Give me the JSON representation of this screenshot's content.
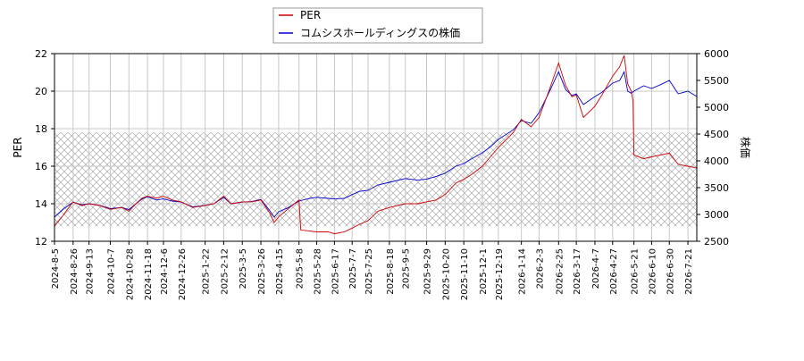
{
  "chart_data": {
    "type": "line",
    "xlabel": "",
    "ylabel_left": "PER",
    "ylabel_right": "株価",
    "ylim_left": [
      12,
      22
    ],
    "ylim_right": [
      2500,
      6000
    ],
    "yticks_left": [
      12,
      14,
      16,
      18,
      20,
      22
    ],
    "yticks_right": [
      2500,
      3000,
      3500,
      4000,
      4500,
      5000,
      5500,
      6000
    ],
    "x_range": [
      "2024-08-05",
      "2026-07-31"
    ],
    "xticks": [
      "2024-8-5",
      "2024-8-26",
      "2024-9-13",
      "2024-10-7",
      "2024-10-28",
      "2024-11-18",
      "2024-12-6",
      "2024-12-26",
      "2025-1-22",
      "2025-2-12",
      "2025-3-5",
      "2025-3-26",
      "2025-4-15",
      "2025-5-8",
      "2025-5-28",
      "2025-6-17",
      "2025-7-7",
      "2025-7-25",
      "2025-8-18",
      "2025-9-5",
      "2025-9-29",
      "2025-10-20",
      "2025-11-10",
      "2025-12-1",
      "2025-12-19",
      "2026-1-14",
      "2026-2-3",
      "2026-2-25",
      "2026-3-17",
      "2026-4-7",
      "2026-4-27",
      "2026-5-21",
      "2026-6-10",
      "2026-6-30",
      "2026-7-21"
    ],
    "legend_position": "top",
    "grid": true,
    "shaded_band_per": [
      12.8,
      17.8
    ],
    "series": [
      {
        "name": "PER",
        "axis": "left",
        "color": "#cc0000",
        "points": [
          [
            "2024-08-05",
            12.8
          ],
          [
            "2024-08-15",
            13.4
          ],
          [
            "2024-08-26",
            14.1
          ],
          [
            "2024-09-05",
            13.9
          ],
          [
            "2024-09-13",
            14.0
          ],
          [
            "2024-09-25",
            13.9
          ],
          [
            "2024-10-07",
            13.7
          ],
          [
            "2024-10-20",
            13.8
          ],
          [
            "2024-10-28",
            13.6
          ],
          [
            "2024-11-05",
            14.0
          ],
          [
            "2024-11-12",
            14.3
          ],
          [
            "2024-11-18",
            14.4
          ],
          [
            "2024-11-28",
            14.3
          ],
          [
            "2024-12-06",
            14.4
          ],
          [
            "2024-12-16",
            14.2
          ],
          [
            "2024-12-26",
            14.1
          ],
          [
            "2025-01-08",
            13.8
          ],
          [
            "2025-01-22",
            13.9
          ],
          [
            "2025-02-01",
            14.0
          ],
          [
            "2025-02-12",
            14.4
          ],
          [
            "2025-02-20",
            14.0
          ],
          [
            "2025-03-05",
            14.1
          ],
          [
            "2025-03-15",
            14.1
          ],
          [
            "2025-03-26",
            14.2
          ],
          [
            "2025-04-05",
            13.5
          ],
          [
            "2025-04-10",
            13.0
          ],
          [
            "2025-04-15",
            13.3
          ],
          [
            "2025-04-25",
            13.7
          ],
          [
            "2025-05-08",
            14.2
          ],
          [
            "2025-05-10",
            12.6
          ],
          [
            "2025-05-28",
            12.5
          ],
          [
            "2025-06-10",
            12.5
          ],
          [
            "2025-06-17",
            12.4
          ],
          [
            "2025-06-28",
            12.5
          ],
          [
            "2025-07-07",
            12.7
          ],
          [
            "2025-07-15",
            12.9
          ],
          [
            "2025-07-25",
            13.1
          ],
          [
            "2025-08-05",
            13.6
          ],
          [
            "2025-08-18",
            13.8
          ],
          [
            "2025-09-05",
            14.0
          ],
          [
            "2025-09-19",
            14.0
          ],
          [
            "2025-09-29",
            14.1
          ],
          [
            "2025-10-10",
            14.2
          ],
          [
            "2025-10-20",
            14.5
          ],
          [
            "2025-11-01",
            15.1
          ],
          [
            "2025-11-10",
            15.3
          ],
          [
            "2025-11-20",
            15.6
          ],
          [
            "2025-12-01",
            16.0
          ],
          [
            "2025-12-10",
            16.5
          ],
          [
            "2025-12-19",
            17.0
          ],
          [
            "2026-01-05",
            17.8
          ],
          [
            "2026-01-14",
            18.5
          ],
          [
            "2026-01-25",
            18.1
          ],
          [
            "2026-02-03",
            18.6
          ],
          [
            "2026-02-14",
            20.0
          ],
          [
            "2026-02-25",
            21.5
          ],
          [
            "2026-03-05",
            20.3
          ],
          [
            "2026-03-12",
            19.7
          ],
          [
            "2026-03-17",
            19.8
          ],
          [
            "2026-03-25",
            18.6
          ],
          [
            "2026-04-07",
            19.2
          ],
          [
            "2026-04-15",
            19.8
          ],
          [
            "2026-04-27",
            20.8
          ],
          [
            "2026-05-05",
            21.3
          ],
          [
            "2026-05-10",
            21.9
          ],
          [
            "2026-05-14",
            20.4
          ],
          [
            "2026-05-18",
            20.0
          ],
          [
            "2026-05-20",
            19.5
          ],
          [
            "2026-05-21",
            16.6
          ],
          [
            "2026-06-01",
            16.4
          ],
          [
            "2026-06-10",
            16.5
          ],
          [
            "2026-06-20",
            16.6
          ],
          [
            "2026-06-30",
            16.7
          ],
          [
            "2026-07-10",
            16.1
          ],
          [
            "2026-07-21",
            16.0
          ],
          [
            "2026-07-31",
            15.9
          ]
        ]
      },
      {
        "name": "コムシスホールディングスの株価",
        "axis": "right",
        "color": "#0000cc",
        "points": [
          [
            "2024-08-05",
            2950
          ],
          [
            "2024-08-15",
            3100
          ],
          [
            "2024-08-26",
            3230
          ],
          [
            "2024-09-05",
            3180
          ],
          [
            "2024-09-13",
            3200
          ],
          [
            "2024-09-25",
            3170
          ],
          [
            "2024-10-07",
            3110
          ],
          [
            "2024-10-20",
            3130
          ],
          [
            "2024-10-28",
            3090
          ],
          [
            "2024-11-05",
            3200
          ],
          [
            "2024-11-12",
            3290
          ],
          [
            "2024-11-18",
            3330
          ],
          [
            "2024-11-28",
            3270
          ],
          [
            "2024-12-06",
            3290
          ],
          [
            "2024-12-16",
            3250
          ],
          [
            "2024-12-26",
            3230
          ],
          [
            "2025-01-08",
            3140
          ],
          [
            "2025-01-22",
            3170
          ],
          [
            "2025-02-01",
            3200
          ],
          [
            "2025-02-12",
            3320
          ],
          [
            "2025-02-20",
            3200
          ],
          [
            "2025-03-05",
            3230
          ],
          [
            "2025-03-15",
            3240
          ],
          [
            "2025-03-26",
            3280
          ],
          [
            "2025-04-05",
            3070
          ],
          [
            "2025-04-10",
            2950
          ],
          [
            "2025-04-15",
            3050
          ],
          [
            "2025-04-25",
            3120
          ],
          [
            "2025-05-08",
            3250
          ],
          [
            "2025-05-20",
            3300
          ],
          [
            "2025-05-28",
            3320
          ],
          [
            "2025-06-10",
            3300
          ],
          [
            "2025-06-17",
            3290
          ],
          [
            "2025-06-28",
            3300
          ],
          [
            "2025-07-07",
            3370
          ],
          [
            "2025-07-15",
            3430
          ],
          [
            "2025-07-25",
            3450
          ],
          [
            "2025-08-05",
            3550
          ],
          [
            "2025-08-18",
            3600
          ],
          [
            "2025-09-05",
            3670
          ],
          [
            "2025-09-19",
            3640
          ],
          [
            "2025-09-29",
            3660
          ],
          [
            "2025-10-10",
            3710
          ],
          [
            "2025-10-20",
            3770
          ],
          [
            "2025-11-01",
            3900
          ],
          [
            "2025-11-10",
            3950
          ],
          [
            "2025-11-20",
            4050
          ],
          [
            "2025-12-01",
            4150
          ],
          [
            "2025-12-10",
            4260
          ],
          [
            "2025-12-19",
            4400
          ],
          [
            "2026-01-05",
            4580
          ],
          [
            "2026-01-14",
            4750
          ],
          [
            "2026-01-25",
            4700
          ],
          [
            "2026-02-03",
            4900
          ],
          [
            "2026-02-14",
            5270
          ],
          [
            "2026-02-25",
            5660
          ],
          [
            "2026-03-05",
            5330
          ],
          [
            "2026-03-12",
            5220
          ],
          [
            "2026-03-17",
            5250
          ],
          [
            "2026-03-25",
            5050
          ],
          [
            "2026-04-07",
            5200
          ],
          [
            "2026-04-15",
            5280
          ],
          [
            "2026-04-27",
            5450
          ],
          [
            "2026-05-05",
            5500
          ],
          [
            "2026-05-10",
            5660
          ],
          [
            "2026-05-14",
            5300
          ],
          [
            "2026-05-18",
            5260
          ],
          [
            "2026-05-21",
            5300
          ],
          [
            "2026-06-01",
            5400
          ],
          [
            "2026-06-10",
            5350
          ],
          [
            "2026-06-20",
            5420
          ],
          [
            "2026-06-30",
            5500
          ],
          [
            "2026-07-10",
            5250
          ],
          [
            "2026-07-21",
            5300
          ],
          [
            "2026-07-31",
            5200
          ]
        ]
      }
    ]
  }
}
